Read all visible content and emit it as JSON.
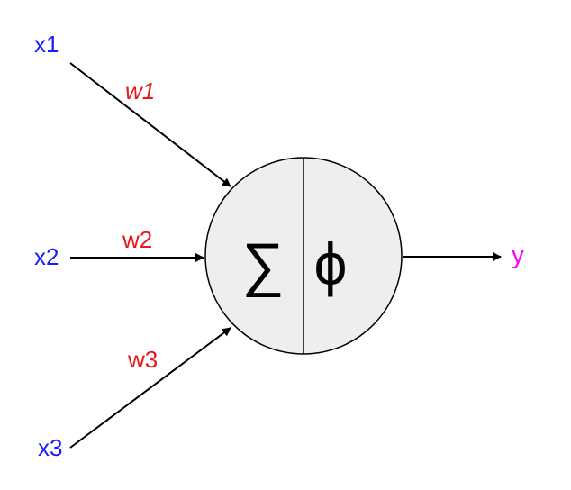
{
  "inputs": [
    {
      "label": "x1",
      "weight": "w1"
    },
    {
      "label": "x2",
      "weight": "w2"
    },
    {
      "label": "x3",
      "weight": "w3"
    }
  ],
  "neuron": {
    "sum_symbol": "∑",
    "activation_symbol": "ϕ"
  },
  "output": {
    "label": "y"
  },
  "colors": {
    "input_label": "#1a1aff",
    "weight_label": "#e6191c",
    "output_label": "#ff00ff",
    "neuron_fill": "#eeeeee",
    "stroke": "#000000"
  }
}
